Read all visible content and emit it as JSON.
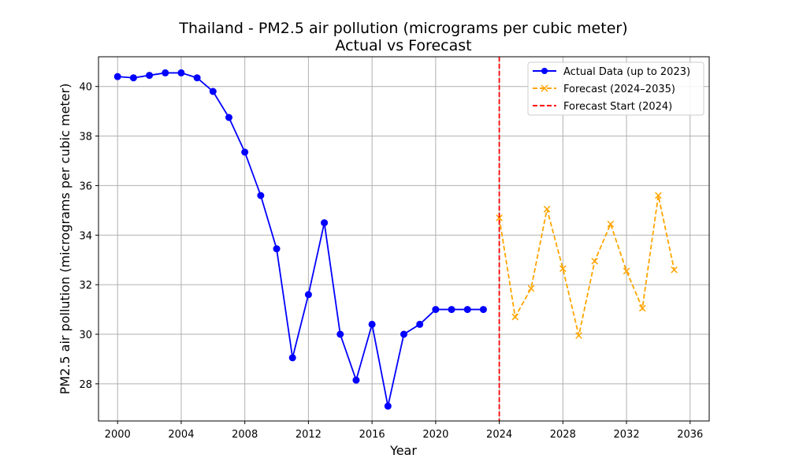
{
  "chart_data": {
    "type": "line",
    "title": "Thailand - PM2.5 air pollution (micrograms per cubic meter)",
    "subtitle": "Actual vs Forecast",
    "xlabel": "Year",
    "ylabel": "PM2.5 air pollution (micrograms per cubic meter)",
    "xlim": [
      1998.8,
      2037.2
    ],
    "ylim": [
      26.5,
      41.2
    ],
    "x_ticks": [
      2000,
      2004,
      2008,
      2012,
      2016,
      2020,
      2024,
      2028,
      2032,
      2036
    ],
    "y_ticks": [
      28,
      30,
      32,
      34,
      36,
      38,
      40
    ],
    "grid": true,
    "legend_position": "top-right",
    "series": [
      {
        "name": "Actual Data (up to 2023)",
        "color": "#0000ff",
        "style": "solid",
        "marker": "circle",
        "x": [
          2000,
          2001,
          2002,
          2003,
          2004,
          2005,
          2006,
          2007,
          2008,
          2009,
          2010,
          2011,
          2012,
          2013,
          2014,
          2015,
          2016,
          2017,
          2018,
          2019,
          2020,
          2021,
          2022,
          2023
        ],
        "y": [
          40.4,
          40.35,
          40.45,
          40.55,
          40.55,
          40.35,
          39.8,
          38.75,
          37.35,
          35.6,
          33.45,
          29.05,
          31.6,
          34.5,
          30.0,
          28.15,
          30.4,
          27.1,
          30.0,
          30.4,
          31.0,
          31.0,
          31.0,
          31.0
        ]
      },
      {
        "name": "Forecast (2024–2035)",
        "color": "#ffa500",
        "style": "dashed",
        "marker": "x",
        "x": [
          2024,
          2025,
          2026,
          2027,
          2028,
          2029,
          2030,
          2031,
          2032,
          2033,
          2034,
          2035
        ],
        "y": [
          34.7,
          30.7,
          31.85,
          35.05,
          32.65,
          29.95,
          32.95,
          34.45,
          32.55,
          31.05,
          35.6,
          32.6
        ]
      }
    ],
    "vlines": [
      {
        "name": "Forecast Start (2024)",
        "x": 2024,
        "color": "#ff0000",
        "style": "dashed"
      }
    ]
  }
}
